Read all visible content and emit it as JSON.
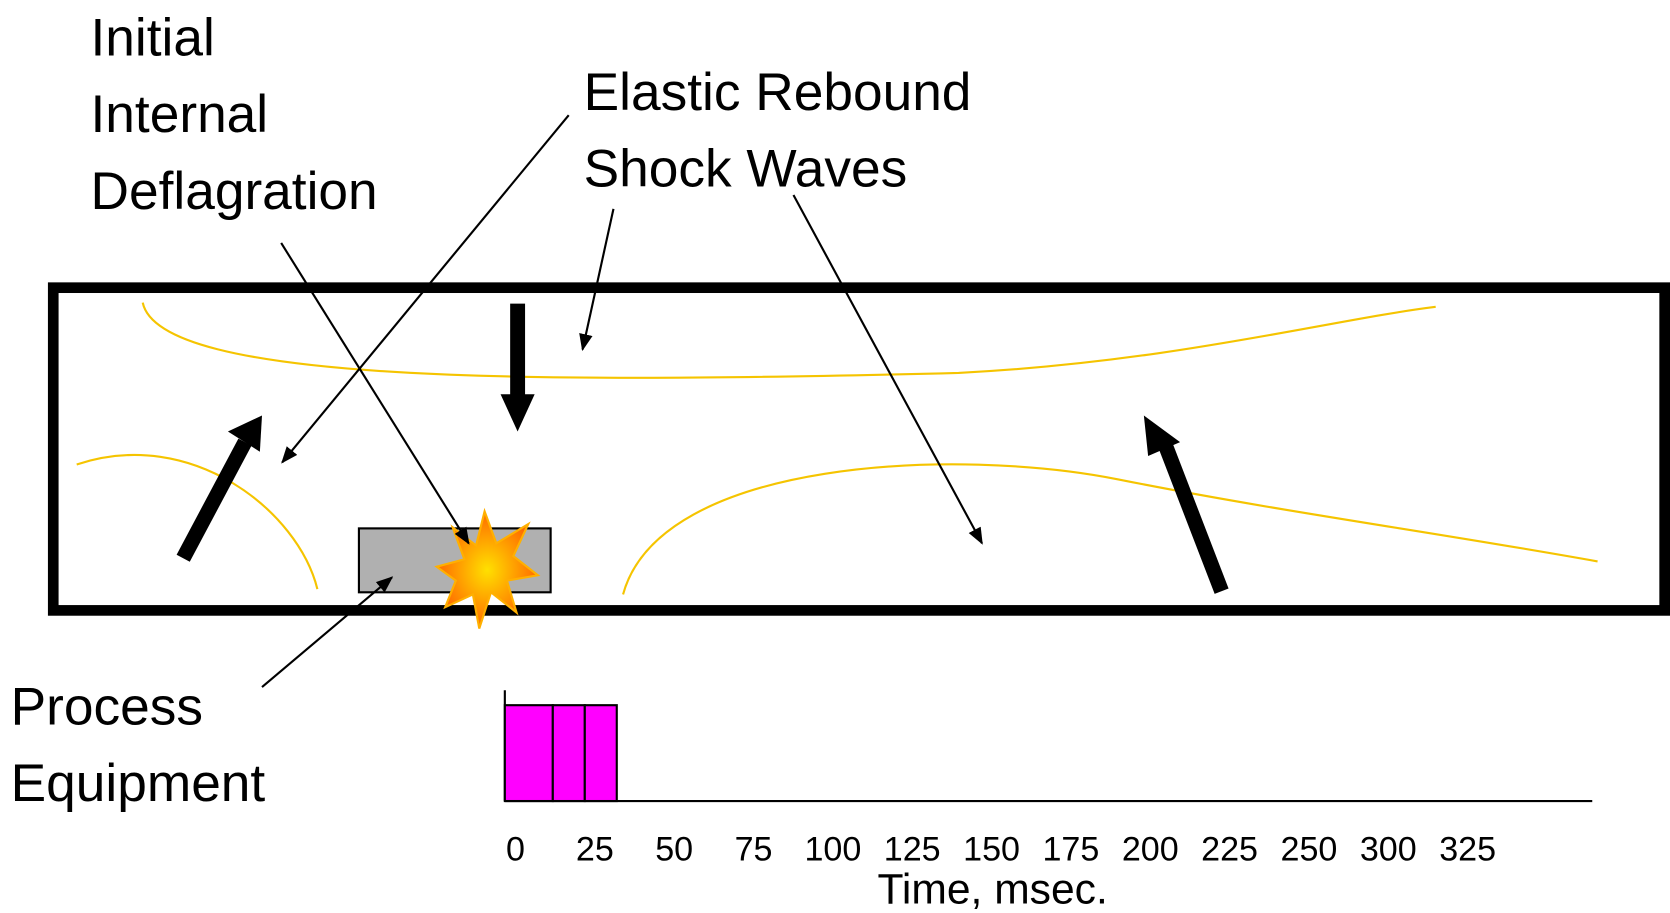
{
  "labels": {
    "deflagration": [
      "Initial",
      "Internal",
      "Deflagration"
    ],
    "shock_waves": [
      "Elastic Rebound",
      "Shock Waves"
    ],
    "equipment": [
      "Process",
      "Equipment"
    ]
  },
  "timeline": {
    "xlabel": "Time, msec.",
    "xticks": [
      0,
      25,
      50,
      75,
      100,
      125,
      150,
      175,
      200,
      225,
      250,
      300,
      325
    ],
    "xlim": [
      0,
      340
    ],
    "bars": [
      [
        0,
        15
      ],
      [
        15,
        25
      ],
      [
        25,
        35
      ]
    ],
    "color": "#ff00ff"
  }
}
